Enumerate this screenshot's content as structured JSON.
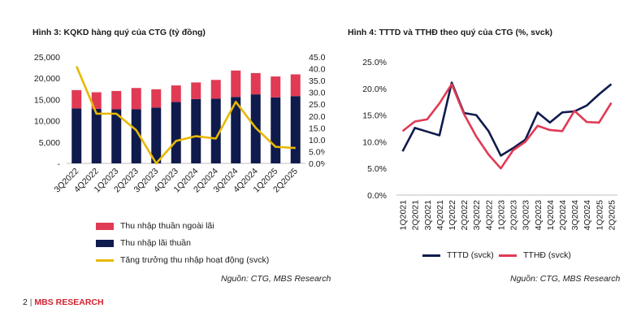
{
  "page_number": "2",
  "separator": "|",
  "brand": "MBS RESEARCH",
  "colors": {
    "red": "#e03a55",
    "navy": "#0f1b4d",
    "yellow": "#e8b800",
    "brand": "#d0212e"
  },
  "chart_data": [
    {
      "type": "bar",
      "title": "Hình 3: KQKD hàng quý của CTG (tỷ đồng)",
      "source": "Nguồn: CTG, MBS Research",
      "categories": [
        "3Q2022",
        "4Q2022",
        "1Q2023",
        "2Q2023",
        "3Q2023",
        "4Q2023",
        "1Q2024",
        "2Q2024",
        "3Q2024",
        "4Q2024",
        "1Q2025",
        "2Q2025"
      ],
      "left_axis": {
        "ylim": [
          0,
          25000
        ],
        "ticks": [
          "25,000",
          "20,000",
          "15,000",
          "10,000",
          "5,000",
          "-"
        ]
      },
      "right_axis": {
        "ylim": [
          0,
          0.45
        ],
        "ticks": [
          "45.0%",
          "40.0%",
          "35.0%",
          "30.0%",
          "25.0%",
          "20.0%",
          "15.0%",
          "10.0%",
          "5.0%",
          "0.0%"
        ]
      },
      "series": [
        {
          "name": "Thu nhập lãi thuần",
          "type": "bar",
          "stacked": true,
          "color": "#0f1b4d",
          "values": [
            12900,
            12800,
            12700,
            12700,
            13100,
            14400,
            15100,
            15200,
            15600,
            16200,
            15500,
            15800
          ]
        },
        {
          "name": "Thu nhập thuần ngoài lãi",
          "type": "bar",
          "stacked": true,
          "color": "#e03a55",
          "values": [
            4300,
            3900,
            4300,
            5000,
            4300,
            3900,
            3900,
            4400,
            6200,
            5000,
            4900,
            5100
          ]
        },
        {
          "name": "Tăng trưởng thu nhập hoạt động (svck)",
          "type": "line",
          "axis": "right",
          "color": "#e8b800",
          "values": [
            0.41,
            0.21,
            0.21,
            0.14,
            0.0,
            0.095,
            0.115,
            0.105,
            0.26,
            0.15,
            0.07,
            0.065
          ]
        }
      ],
      "legend": [
        "Thu nhập thuần ngoài lãi",
        "Thu nhập lãi thuần",
        "Tăng trưởng thu nhập hoạt động (svck)"
      ],
      "legend_position": "bottom"
    },
    {
      "type": "line",
      "title": "Hình 4: TTTD và TTHĐ theo quý của CTG (%, svck)",
      "source": "Nguồn: CTG, MBS Research",
      "categories": [
        "1Q2021",
        "2Q2021",
        "3Q2021",
        "4Q2021",
        "1Q2022",
        "2Q2022",
        "3Q2022",
        "4Q2022",
        "1Q2023",
        "2Q2023",
        "3Q2023",
        "4Q2023",
        "1Q2024",
        "2Q2024",
        "3Q2024",
        "4Q2024",
        "1Q2025",
        "2Q2025"
      ],
      "ylim": [
        0,
        0.25
      ],
      "ticks": [
        "25.0%",
        "20.0%",
        "15.0%",
        "10.0%",
        "5.0%",
        "0.0%"
      ],
      "series": [
        {
          "name": "TTTD (svck)",
          "color": "#0f1b4d",
          "values": [
            0.082,
            0.126,
            0.119,
            0.112,
            0.211,
            0.154,
            0.15,
            0.12,
            0.074,
            0.088,
            0.104,
            0.155,
            0.136,
            0.155,
            0.157,
            0.168,
            0.189,
            0.208
          ]
        },
        {
          "name": "TTHĐ (svck)",
          "color": "#e03a55",
          "values": [
            0.12,
            0.138,
            0.142,
            0.172,
            0.208,
            0.152,
            0.11,
            0.076,
            0.05,
            0.084,
            0.1,
            0.13,
            0.122,
            0.12,
            0.158,
            0.137,
            0.136,
            0.173
          ]
        }
      ],
      "legend": [
        "TTTD (svck)",
        "TTHĐ (svck)"
      ],
      "legend_position": "bottom"
    }
  ]
}
